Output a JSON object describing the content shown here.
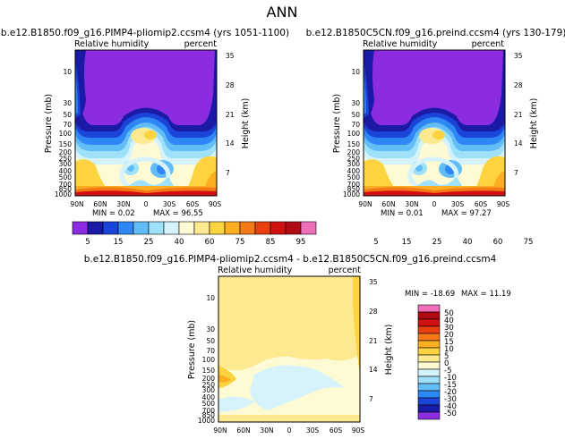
{
  "page": {
    "title": "ANN"
  },
  "chart_data": [
    {
      "type": "heatmap",
      "title": "b.e12.B1850.f09_g16.PIMP4-pliomip2.ccsm4 (yrs 1051-1100)",
      "variable": "Relative humidity",
      "units": "percent",
      "xlabel": "",
      "ylabel": "Pressure (mb)",
      "y2label": "Height (km)",
      "x_ticks": [
        "90N",
        "60N",
        "30N",
        "0",
        "30S",
        "60S",
        "90S"
      ],
      "y_ticks": [
        "10",
        "30",
        "50",
        "70",
        "100",
        "150",
        "200",
        "250",
        "300",
        "400",
        "500",
        "700",
        "850",
        "1000"
      ],
      "y2_ticks": [
        "35",
        "28",
        "21",
        "14",
        "7"
      ],
      "stats": {
        "min": "MIN = 0.02",
        "max": "MAX = 96.55"
      },
      "pattern": "abs"
    },
    {
      "type": "heatmap",
      "title": "b.e12.B1850C5CN.f09_g16.preind.ccsm4 (yrs 130-179)",
      "variable": "Relative humidity",
      "units": "percent",
      "xlabel": "",
      "ylabel": "Pressure (mb)",
      "y2label": "Height (km)",
      "x_ticks": [
        "90N",
        "60N",
        "30N",
        "0",
        "30S",
        "60S",
        "90S"
      ],
      "y_ticks": [
        "10",
        "30",
        "50",
        "70",
        "100",
        "150",
        "200",
        "250",
        "300",
        "400",
        "500",
        "700",
        "850",
        "1000"
      ],
      "y2_ticks": [
        "35",
        "28",
        "21",
        "14",
        "7"
      ],
      "stats": {
        "min": "MIN = 0.01",
        "max": "MAX = 97.27"
      },
      "pattern": "abs"
    },
    {
      "type": "heatmap",
      "title": "b.e12.B1850.f09_g16.PIMP4-pliomip2.ccsm4 - b.e12.B1850C5CN.f09_g16.preind.ccsm4",
      "variable": "Relative humidity",
      "units": "percent",
      "xlabel": "",
      "ylabel": "Pressure (mb)",
      "y2label": "Height (km)",
      "x_ticks": [
        "90N",
        "60N",
        "30N",
        "0",
        "30S",
        "60S",
        "90S"
      ],
      "y_ticks": [
        "10",
        "30",
        "50",
        "70",
        "100",
        "150",
        "200",
        "250",
        "300",
        "400",
        "500",
        "700",
        "850",
        "1000"
      ],
      "y2_ticks": [
        "35",
        "28",
        "21",
        "14",
        "7"
      ],
      "stats": {
        "min": "MIN = -18.69",
        "max": "MAX = 11.19"
      },
      "pattern": "diff"
    }
  ],
  "abs_colorbar": {
    "labels": [
      "5",
      "15",
      "25",
      "40",
      "60",
      "75",
      "85",
      "95"
    ],
    "colors": [
      "#8c2ce0",
      "#1a1aa6",
      "#1b45d8",
      "#2f86f5",
      "#62bdf7",
      "#9fe0fb",
      "#d6f2fb",
      "#fdfad4",
      "#fde98f",
      "#fdd33f",
      "#fcae22",
      "#f47a18",
      "#e8400f",
      "#d11010",
      "#b00b14",
      "#f06fb9"
    ]
  },
  "diff_colorbar": {
    "labels": [
      "50",
      "40",
      "30",
      "20",
      "15",
      "10",
      "5",
      "0",
      "-5",
      "-10",
      "-15",
      "-20",
      "-30",
      "-40",
      "-50"
    ],
    "colors": [
      "#f06fb9",
      "#b00b14",
      "#d11010",
      "#e8400f",
      "#f47a18",
      "#fcae22",
      "#fdd33f",
      "#fde98f",
      "#fdfad4",
      "#d6f2fb",
      "#9fe0fb",
      "#62bdf7",
      "#2f86f5",
      "#1b45d8",
      "#1a1aa6",
      "#8c2ce0"
    ]
  }
}
